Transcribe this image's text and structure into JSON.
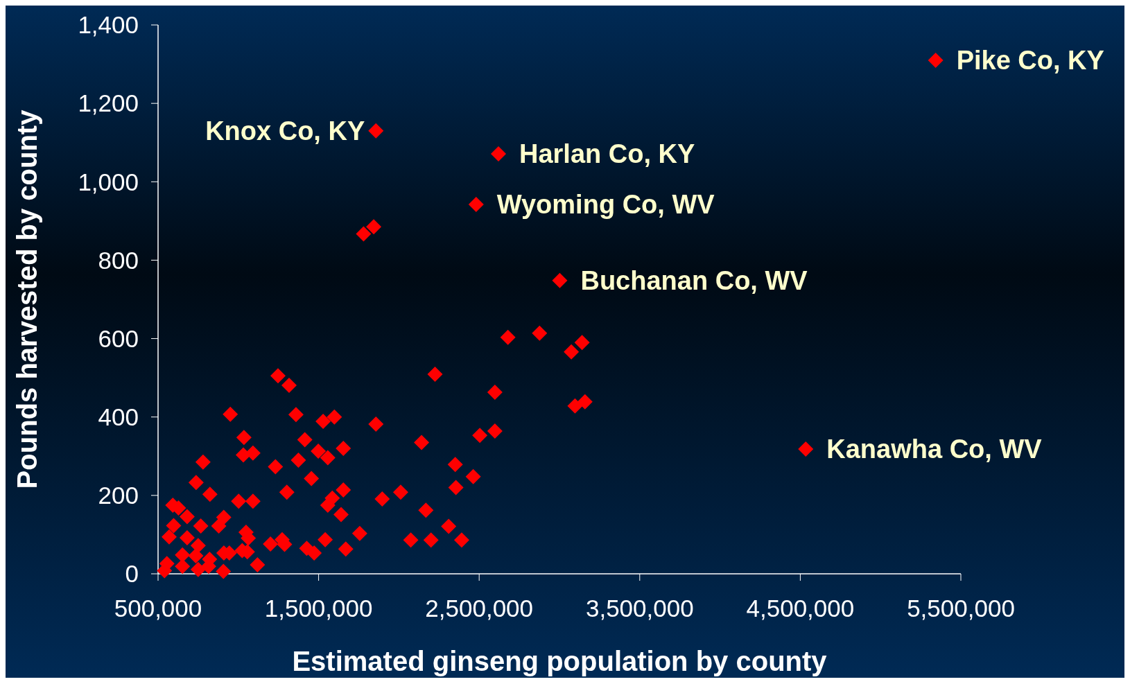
{
  "chart_data": {
    "type": "scatter",
    "xlabel": "Estimated ginseng population by county",
    "ylabel": "Pounds harvested by county",
    "xlim": [
      500000,
      5500000
    ],
    "xticks": [
      {
        "value": 500000,
        "label": "500,000"
      },
      {
        "value": 1500000,
        "label": "1,500,000"
      },
      {
        "value": 2500000,
        "label": "2,500,000"
      },
      {
        "value": 3500000,
        "label": "3,500,000"
      },
      {
        "value": 4500000,
        "label": "4,500,000"
      },
      {
        "value": 5500000,
        "label": "5,500,000"
      }
    ],
    "ylim": [
      0,
      1400
    ],
    "yticks": [
      0,
      200,
      400,
      600,
      800,
      {
        "value": 1000,
        "label": "1,000"
      },
      {
        "value": 1200,
        "label": "1,200"
      },
      {
        "value": 1400,
        "label": "1,400"
      }
    ],
    "marker": "diamond",
    "series": [
      {
        "color": "#ff0000",
        "x": [
          5343000,
          1857000,
          2620000,
          2481000,
          3002000,
          4534000,
          1780000,
          1843000,
          2679000,
          2876000,
          3074000,
          3141000,
          3097000,
          3159000,
          2225000,
          2598000,
          2598000,
          2504000,
          2351000,
          2355000,
          2463000,
          2310000,
          2391000,
          2200000,
          2168000,
          2141000,
          2074000,
          2011000,
          1896000,
          1857000,
          1756000,
          1247000,
          1316000,
          950000,
          1359000,
          1528000,
          1598000,
          1035000,
          1414000,
          1031000,
          1091000,
          1498000,
          1557000,
          1654000,
          1231000,
          1374000,
          1455000,
          780000,
          737000,
          823000,
          1002000,
          1091000,
          1302000,
          1585000,
          1557000,
          1654000,
          1640000,
          592000,
          627000,
          681000,
          597000,
          766000,
          878000,
          909000,
          569000,
          681000,
          750000,
          1048000,
          1062000,
          652000,
          735000,
          821000,
          910000,
          944000,
          1024000,
          1056000,
          555000,
          652000,
          750000,
          815000,
          907000,
          540000,
          1119000,
          1200000,
          1273000,
          1288000,
          1426000,
          1472000,
          1541000,
          1669000
        ],
        "values": [
          1310,
          1130,
          1071,
          942,
          748,
          318,
          867,
          885,
          603,
          614,
          566,
          590,
          428,
          439,
          509,
          463,
          364,
          353,
          279,
          220,
          248,
          121,
          86,
          86,
          162,
          335,
          86,
          208,
          191,
          382,
          103,
          505,
          481,
          407,
          406,
          389,
          400,
          348,
          342,
          303,
          308,
          313,
          296,
          320,
          273,
          290,
          243,
          285,
          233,
          203,
          185,
          185,
          208,
          193,
          175,
          214,
          151,
          175,
          168,
          146,
          123,
          122,
          122,
          144,
          94,
          92,
          72,
          106,
          91,
          48,
          46,
          37,
          53,
          53,
          59,
          56,
          26,
          19,
          11,
          19,
          6,
          8,
          23,
          76,
          87,
          75,
          65,
          53,
          87,
          63
        ]
      }
    ],
    "annotations": [
      {
        "text": "Pike Co, KY",
        "x": 5343000,
        "y": 1310
      },
      {
        "text": "Knox Co, KY",
        "x": 1857000,
        "y": 1130
      },
      {
        "text": "Harlan Co, KY",
        "x": 2620000,
        "y": 1071
      },
      {
        "text": "Wyoming Co, WV",
        "x": 2481000,
        "y": 942
      },
      {
        "text": "Buchanan Co, WV",
        "x": 3002000,
        "y": 748
      },
      {
        "text": "Kanawha Co, WV",
        "x": 4534000,
        "y": 318
      }
    ]
  }
}
